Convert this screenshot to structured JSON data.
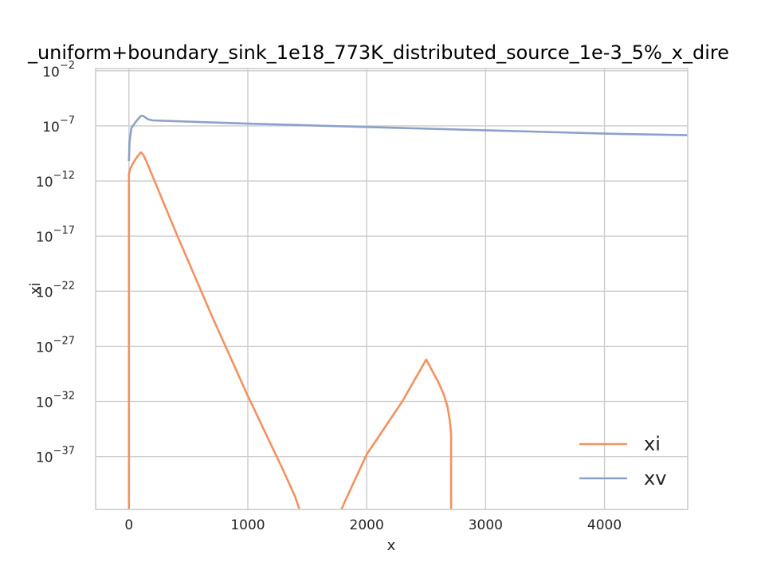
{
  "chart_data": {
    "type": "line",
    "title": "_uniform+boundary_sink_1e18_773K_distributed_source_1e-3_5%_x_dire",
    "xlabel": "x",
    "ylabel": "xi",
    "xlim": [
      -280,
      4700
    ],
    "ylog": true,
    "ylim_exp": [
      -41.8,
      -1.8
    ],
    "x_ticks": [
      0,
      1000,
      2000,
      3000,
      4000
    ],
    "x_tick_labels": [
      "0",
      "1000",
      "2000",
      "3000",
      "4000"
    ],
    "y_ticks_exp": [
      -37,
      -32,
      -27,
      -22,
      -17,
      -12,
      -7,
      -2
    ],
    "y_tick_base": "10",
    "y_tick_exps": [
      "−37",
      "−32",
      "−27",
      "−22",
      "−17",
      "−12",
      "−7",
      "−2"
    ],
    "grid": true,
    "legend_position": "lower-right",
    "series": [
      {
        "name": "xi",
        "color": "#f4915f",
        "points_log10": [
          [
            0,
            -45
          ],
          [
            0,
            -11.4
          ],
          [
            10,
            -10.9
          ],
          [
            40,
            -10.3
          ],
          [
            70,
            -9.8
          ],
          [
            100,
            -9.4
          ],
          [
            120,
            -9.6
          ],
          [
            150,
            -10.3
          ],
          [
            400,
            -16.8
          ],
          [
            700,
            -24.3
          ],
          [
            1000,
            -31.5
          ],
          [
            1300,
            -38.3
          ],
          [
            1400,
            -40.7
          ],
          [
            1440,
            -42
          ]
        ]
      },
      {
        "name": "xi",
        "color": "#f4915f",
        "points_log10": [
          [
            1780,
            -42
          ],
          [
            1820,
            -41
          ],
          [
            2000,
            -36.8
          ],
          [
            2300,
            -32
          ],
          [
            2500,
            -28.2
          ],
          [
            2600,
            -30.2
          ],
          [
            2650,
            -31.4
          ],
          [
            2680,
            -32.5
          ],
          [
            2700,
            -33.8
          ],
          [
            2710,
            -35
          ],
          [
            2710,
            -45
          ]
        ]
      },
      {
        "name": "xv",
        "color": "#8da0cb",
        "points_log10": [
          [
            0,
            -10.2
          ],
          [
            5,
            -8.5
          ],
          [
            20,
            -7.2
          ],
          [
            60,
            -6.6
          ],
          [
            100,
            -6.1
          ],
          [
            120,
            -6.1
          ],
          [
            160,
            -6.4
          ],
          [
            200,
            -6.5
          ],
          [
            1000,
            -6.8
          ],
          [
            2000,
            -7.1
          ],
          [
            3000,
            -7.4
          ],
          [
            4000,
            -7.7
          ],
          [
            4700,
            -7.85
          ]
        ]
      }
    ],
    "legend": [
      {
        "label": "xi",
        "color": "#f4915f"
      },
      {
        "label": "xv",
        "color": "#8da0cb"
      }
    ]
  }
}
